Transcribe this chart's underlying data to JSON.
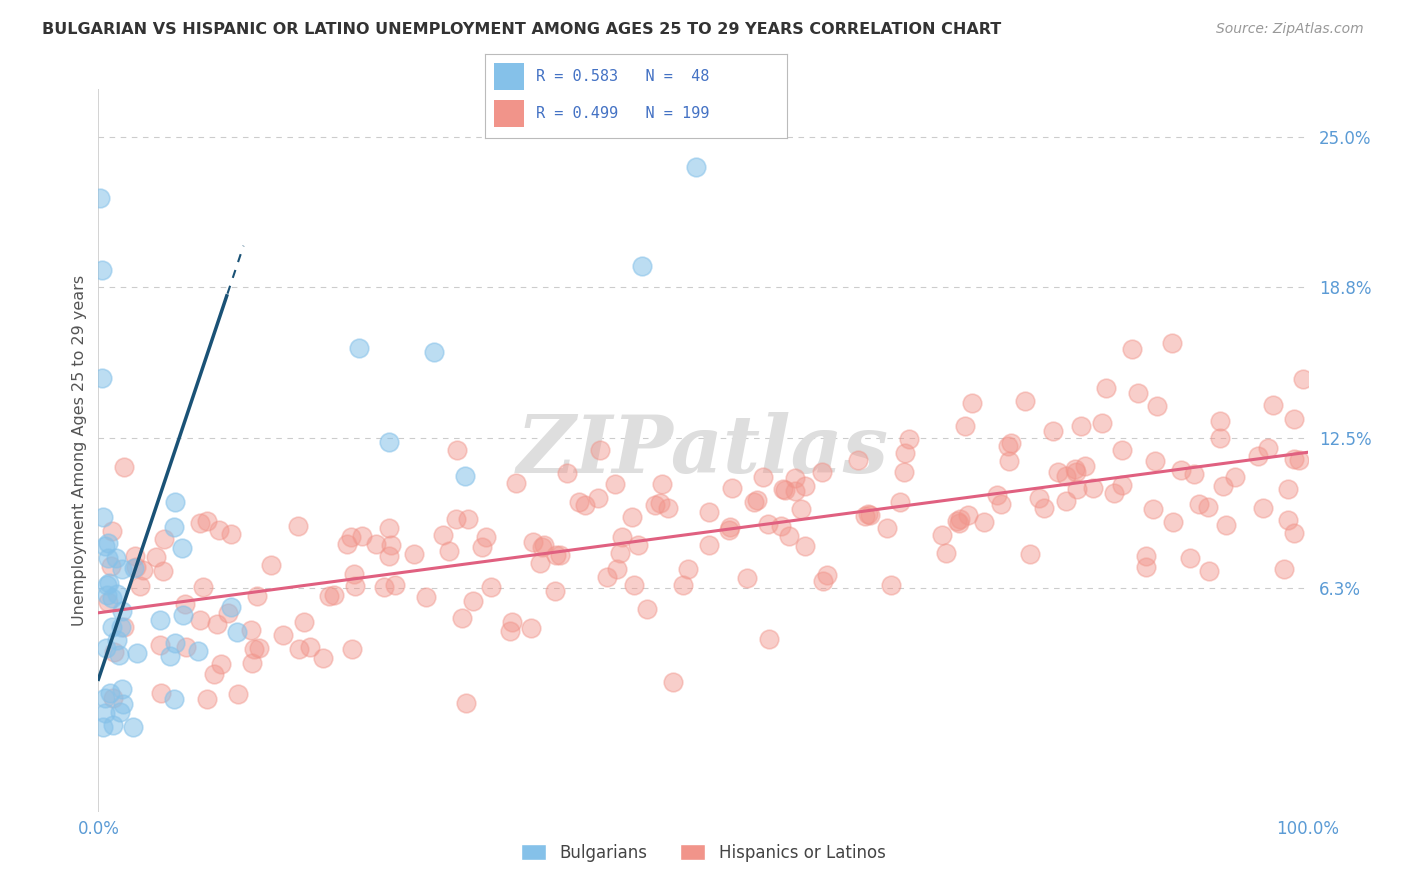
{
  "title": "BULGARIAN VS HISPANIC OR LATINO UNEMPLOYMENT AMONG AGES 25 TO 29 YEARS CORRELATION CHART",
  "source": "Source: ZipAtlas.com",
  "ylabel": "Unemployment Among Ages 25 to 29 years",
  "xlim": [
    0,
    100
  ],
  "ylim": [
    -3,
    27
  ],
  "ytick_values": [
    6.3,
    12.5,
    18.8,
    25.0
  ],
  "ytick_labels": [
    "6.3%",
    "12.5%",
    "18.8%",
    "25.0%"
  ],
  "legend_bulgarian": "R = 0.583   N =  48",
  "legend_hispanic": "R = 0.499   N = 199",
  "bulgarian_color": "#85C1E9",
  "hispanic_color": "#F1948A",
  "trendline_bulgarian_color": "#1A5276",
  "trendline_hispanic_color": "#E06080",
  "watermark_color": "#DEDEDE",
  "background_color": "#FFFFFF",
  "grid_color": "#CCCCCC",
  "tick_color": "#5B9BD5",
  "ylabel_color": "#555555",
  "title_color": "#333333",
  "source_color": "#999999",
  "legend_text_color": "#4472C4",
  "bulgarians_label": "Bulgarians",
  "hispanics_label": "Hispanics or Latinos"
}
